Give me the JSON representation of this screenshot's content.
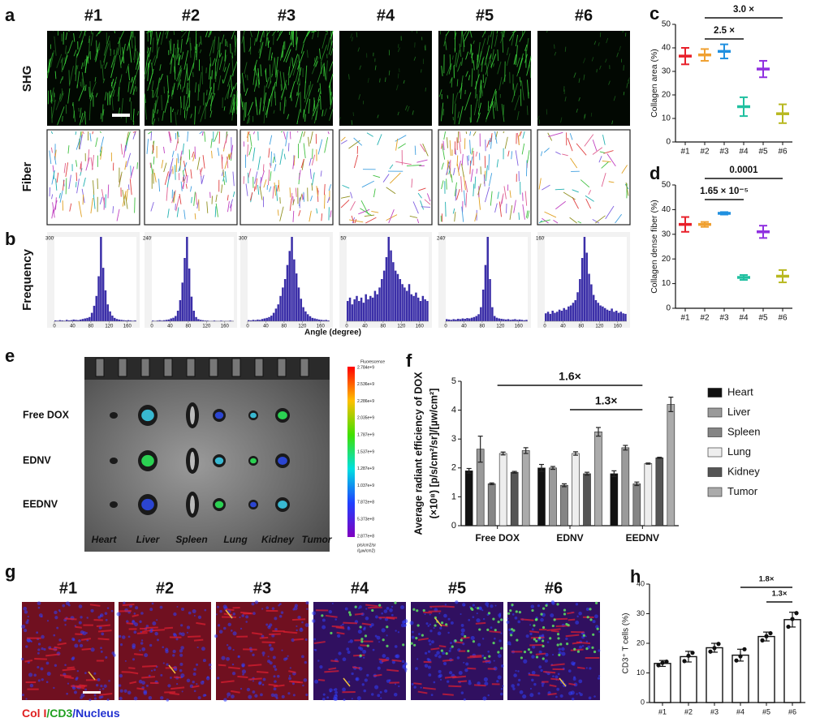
{
  "figure": {
    "a": {
      "panel": "a",
      "columns": [
        "#1",
        "#2",
        "#3",
        "#4",
        "#5",
        "#6"
      ],
      "rows": [
        "SHG",
        "Fiber"
      ]
    },
    "b": {
      "panel": "b",
      "ylabel": "Frequency",
      "xlabel": "Angle (degree)"
    },
    "e": {
      "panel": "e",
      "rows": [
        "Free DOX",
        "EDNV",
        "EEDNV"
      ],
      "organs": [
        "Heart",
        "Liver",
        "Spleen",
        "Lung",
        "Kidney",
        "Tumor"
      ],
      "colorbar": {
        "title": "Fluorescence",
        "ticks": [
          "2.784e+9",
          "2.536e+9",
          "2.286e+9",
          "2.035e+9",
          "1.787e+9",
          "1.537e+9",
          "1.287e+9",
          "1.037e+9",
          "7.872e+8",
          "5.373e+8",
          "2.877e+8"
        ],
        "unit": [
          "p/s/cm2/sr",
          "/(µw/cm2)"
        ]
      }
    },
    "g": {
      "panel": "g",
      "columns": [
        "#1",
        "#2",
        "#3",
        "#4",
        "#5",
        "#6"
      ],
      "legend": [
        {
          "text": "Col I",
          "color": "#e02020"
        },
        {
          "text": "/CD3",
          "color": "#20a020"
        },
        {
          "text": "/Nucleus",
          "color": "#2030d0"
        }
      ]
    }
  },
  "chart_data": [
    {
      "type": "histogram",
      "color": "#3b2fa8",
      "xlim": [
        0,
        180
      ],
      "ylim": [
        0,
        300
      ],
      "xticks": [
        0,
        40,
        80,
        120,
        160
      ],
      "yticks": [
        300
      ],
      "bins": [
        0,
        5,
        10,
        15,
        20,
        25,
        30,
        35,
        40,
        45,
        50,
        55,
        60,
        65,
        70,
        75,
        80,
        85,
        90,
        95,
        100,
        105,
        110,
        115,
        120,
        125,
        130,
        135,
        140,
        145,
        150,
        155,
        160,
        165,
        170,
        175,
        180
      ],
      "counts": [
        3,
        2,
        4,
        3,
        2,
        5,
        3,
        4,
        6,
        5,
        4,
        6,
        8,
        10,
        12,
        15,
        30,
        55,
        90,
        160,
        300,
        190,
        110,
        60,
        35,
        20,
        12,
        8,
        6,
        5,
        4,
        3,
        4,
        3,
        2,
        3
      ]
    },
    {
      "type": "histogram",
      "color": "#3b2fa8",
      "xlim": [
        0,
        180
      ],
      "ylim": [
        0,
        240
      ],
      "xticks": [
        0,
        40,
        80,
        120,
        160
      ],
      "yticks": [
        240
      ],
      "bins": [
        0,
        5,
        10,
        15,
        20,
        25,
        30,
        35,
        40,
        45,
        50,
        55,
        60,
        65,
        70,
        75,
        80,
        85,
        90,
        95,
        100,
        105,
        110,
        115,
        120,
        125,
        130,
        135,
        140,
        145,
        150,
        155,
        160,
        165,
        170,
        175,
        180
      ],
      "counts": [
        2,
        1,
        2,
        3,
        2,
        3,
        4,
        5,
        8,
        10,
        15,
        30,
        60,
        110,
        180,
        240,
        150,
        70,
        30,
        12,
        6,
        4,
        3,
        2,
        2,
        1,
        1,
        2,
        1,
        1,
        2,
        1,
        1,
        1,
        2,
        1
      ]
    },
    {
      "type": "histogram",
      "color": "#3b2fa8",
      "xlim": [
        0,
        180
      ],
      "ylim": [
        0,
        300
      ],
      "xticks": [
        0,
        40,
        80,
        120,
        160
      ],
      "yticks": [
        300
      ],
      "bins": [
        0,
        5,
        10,
        15,
        20,
        25,
        30,
        35,
        40,
        45,
        50,
        55,
        60,
        65,
        70,
        75,
        80,
        85,
        90,
        95,
        100,
        105,
        110,
        115,
        120,
        125,
        130,
        135,
        140,
        145,
        150,
        155,
        160,
        165,
        170,
        175,
        180
      ],
      "counts": [
        4,
        3,
        5,
        4,
        6,
        5,
        8,
        10,
        12,
        15,
        20,
        30,
        45,
        60,
        90,
        120,
        150,
        200,
        250,
        300,
        220,
        170,
        120,
        80,
        50,
        35,
        25,
        18,
        12,
        10,
        8,
        6,
        5,
        4,
        5,
        3
      ]
    },
    {
      "type": "histogram",
      "color": "#3b2fa8",
      "xlim": [
        0,
        180
      ],
      "ylim": [
        0,
        50
      ],
      "xticks": [
        0,
        40,
        80,
        120,
        160
      ],
      "yticks": [
        50
      ],
      "bins": [
        0,
        5,
        10,
        15,
        20,
        25,
        30,
        35,
        40,
        45,
        50,
        55,
        60,
        65,
        70,
        75,
        80,
        85,
        90,
        95,
        100,
        105,
        110,
        115,
        120,
        125,
        130,
        135,
        140,
        145,
        150,
        155,
        160,
        165,
        170,
        175,
        180
      ],
      "counts": [
        12,
        14,
        10,
        13,
        15,
        12,
        14,
        11,
        16,
        13,
        15,
        14,
        18,
        16,
        20,
        25,
        30,
        38,
        50,
        42,
        35,
        30,
        28,
        25,
        22,
        20,
        18,
        22,
        16,
        15,
        17,
        14,
        12,
        15,
        13,
        12
      ]
    },
    {
      "type": "histogram",
      "color": "#3b2fa8",
      "xlim": [
        0,
        180
      ],
      "ylim": [
        0,
        240
      ],
      "xticks": [
        0,
        40,
        80,
        120,
        160
      ],
      "yticks": [
        240
      ],
      "bins": [
        0,
        5,
        10,
        15,
        20,
        25,
        30,
        35,
        40,
        45,
        50,
        55,
        60,
        65,
        70,
        75,
        80,
        85,
        90,
        95,
        100,
        105,
        110,
        115,
        120,
        125,
        130,
        135,
        140,
        145,
        150,
        155,
        160,
        165,
        170,
        175,
        180
      ],
      "counts": [
        6,
        5,
        4,
        6,
        5,
        7,
        6,
        8,
        7,
        9,
        8,
        10,
        12,
        15,
        20,
        40,
        90,
        160,
        240,
        120,
        40,
        15,
        10,
        8,
        7,
        6,
        5,
        6,
        4,
        5,
        6,
        4,
        5,
        4,
        3,
        4
      ]
    },
    {
      "type": "histogram",
      "color": "#3b2fa8",
      "xlim": [
        0,
        180
      ],
      "ylim": [
        0,
        160
      ],
      "xticks": [
        0,
        40,
        80,
        120,
        160
      ],
      "yticks": [
        160
      ],
      "bins": [
        0,
        5,
        10,
        15,
        20,
        25,
        30,
        35,
        40,
        45,
        50,
        55,
        60,
        65,
        70,
        75,
        80,
        85,
        90,
        95,
        100,
        105,
        110,
        115,
        120,
        125,
        130,
        135,
        140,
        145,
        150,
        155,
        160,
        165,
        170,
        175,
        180
      ],
      "counts": [
        15,
        18,
        14,
        20,
        16,
        18,
        22,
        20,
        25,
        22,
        28,
        30,
        35,
        40,
        55,
        80,
        120,
        160,
        130,
        90,
        70,
        50,
        40,
        35,
        30,
        28,
        25,
        22,
        20,
        24,
        18,
        20,
        16,
        18,
        15,
        14
      ]
    },
    {
      "type": "errorbar",
      "panel": "c",
      "ylabel": "Collagen area (%)",
      "categories": [
        "#1",
        "#2",
        "#3",
        "#4",
        "#5",
        "#6"
      ],
      "values": [
        36.5,
        37,
        38.5,
        15,
        31,
        12
      ],
      "errors": [
        3.5,
        2.5,
        3,
        4,
        3.5,
        4
      ],
      "colors": [
        "#e8202a",
        "#f0a030",
        "#2090e0",
        "#20c0a0",
        "#9030e0",
        "#b8b820"
      ],
      "ylim": [
        0,
        50
      ],
      "yticks": [
        0,
        10,
        20,
        30,
        40,
        50
      ],
      "annotations": [
        {
          "text": "2.5 ×",
          "from": "#2",
          "to": "#4"
        },
        {
          "text": "3.0 ×",
          "from": "#2",
          "to": "#6"
        }
      ]
    },
    {
      "type": "errorbar",
      "panel": "d",
      "ylabel": "Collagen dense fiber (%)",
      "categories": [
        "#1",
        "#2",
        "#3",
        "#4",
        "#5",
        "#6"
      ],
      "values": [
        34,
        34,
        38.5,
        12.5,
        31,
        13
      ],
      "errors": [
        3,
        1,
        0.5,
        1,
        2.5,
        2.5
      ],
      "colors": [
        "#e8202a",
        "#f0a030",
        "#2090e0",
        "#20c0a0",
        "#9030e0",
        "#b8b820"
      ],
      "ylim": [
        0,
        50
      ],
      "yticks": [
        0,
        10,
        20,
        30,
        40,
        50
      ],
      "annotations": [
        {
          "text": "1.65 × 10⁻⁵",
          "from": "#2",
          "to": "#4"
        },
        {
          "text": "0.0001",
          "from": "#2",
          "to": "#6"
        }
      ]
    },
    {
      "type": "grouped-bar",
      "panel": "f",
      "ylabel": [
        "Average radiant efficiency of DOX",
        "(×10⁸) [p/s/cm²/sr]/[µw/cm²]"
      ],
      "categories": [
        "Free DOX",
        "EDNV",
        "EEDNV"
      ],
      "ylim": [
        0,
        5
      ],
      "yticks": [
        0,
        1,
        2,
        3,
        4,
        5
      ],
      "legend": "right",
      "series": [
        {
          "name": "Heart",
          "color": "#111111",
          "values": [
            1.9,
            2.0,
            1.8
          ],
          "errors": [
            0.08,
            0.12,
            0.1
          ]
        },
        {
          "name": "Liver",
          "color": "#9a9a9a",
          "values": [
            2.65,
            2.0,
            2.7
          ],
          "errors": [
            0.45,
            0.05,
            0.08
          ]
        },
        {
          "name": "Spleen",
          "color": "#858585",
          "values": [
            1.45,
            1.4,
            1.45
          ],
          "errors": [
            0.03,
            0.05,
            0.06
          ]
        },
        {
          "name": "Lung",
          "color": "#eeeeee",
          "values": [
            2.5,
            2.5,
            2.15
          ],
          "errors": [
            0.05,
            0.06,
            0.02
          ]
        },
        {
          "name": "Kidney",
          "color": "#555555",
          "values": [
            1.85,
            1.8,
            2.35
          ],
          "errors": [
            0.03,
            0.05,
            0.02
          ]
        },
        {
          "name": "Tumor",
          "color": "#ababab",
          "values": [
            2.6,
            3.25,
            4.2
          ],
          "errors": [
            0.1,
            0.15,
            0.25
          ]
        }
      ],
      "annotations": [
        {
          "text": "1.3×",
          "from": "EDNV",
          "to": "EEDNV"
        },
        {
          "text": "1.6×",
          "from": "Free DOX",
          "to": "EEDNV"
        }
      ]
    },
    {
      "type": "bar",
      "panel": "h",
      "ylabel": "CD3⁺ T cells (%)",
      "categories": [
        "#1",
        "#2",
        "#3",
        "#4",
        "#5",
        "#6"
      ],
      "values": [
        13.2,
        15.5,
        18.5,
        16,
        22.3,
        28
      ],
      "errors": [
        1,
        1.8,
        1.5,
        2,
        1.5,
        2.5
      ],
      "points": [
        [
          12.6,
          13.4,
          13.8
        ],
        [
          14,
          15.8,
          16.8
        ],
        [
          17.2,
          18.4,
          19.8
        ],
        [
          14.2,
          15.6,
          18
        ],
        [
          21,
          22.4,
          23.4
        ],
        [
          25.6,
          28.2,
          30.2
        ]
      ],
      "ylim": [
        0,
        40
      ],
      "yticks": [
        0,
        10,
        20,
        30,
        40
      ],
      "annotations": [
        {
          "text": "1.3×",
          "from": "#5",
          "to": "#6"
        },
        {
          "text": "1.8×",
          "from": "#4",
          "to": "#6"
        }
      ]
    }
  ]
}
